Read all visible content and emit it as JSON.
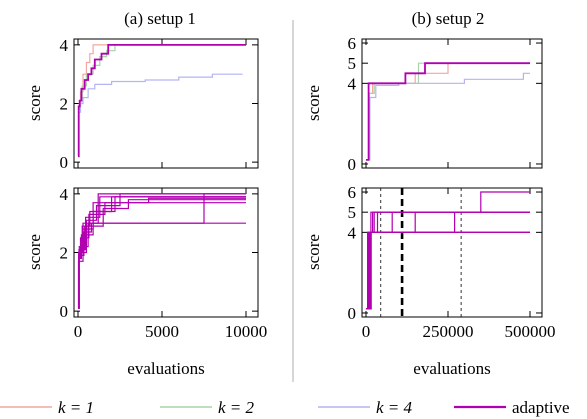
{
  "chart_data": [
    {
      "type": "line",
      "title": "(a) setup 1",
      "xlabel": "",
      "ylabel": "score",
      "xlim": [
        0,
        10000
      ],
      "ylim": [
        -0.2,
        4.2
      ],
      "yticks": [
        0,
        2,
        4
      ],
      "xticks": [],
      "series": [
        {
          "name": "k = 1",
          "x": [
            0,
            40,
            80,
            150,
            300,
            500,
            700,
            900,
            10000
          ],
          "values": [
            0.2,
            1.8,
            2.0,
            2.4,
            3.0,
            3.4,
            3.7,
            4.0,
            4.0
          ]
        },
        {
          "name": "k = 2",
          "x": [
            0,
            50,
            120,
            250,
            500,
            900,
            1300,
            1700,
            2200,
            10000
          ],
          "values": [
            0.2,
            1.8,
            2.1,
            2.6,
            3.0,
            3.3,
            3.6,
            3.8,
            4.0,
            4.0
          ]
        },
        {
          "name": "k = 4",
          "x": [
            0,
            60,
            150,
            300,
            600,
            1000,
            2000,
            4000,
            6000,
            8000,
            9800
          ],
          "values": [
            0.2,
            1.7,
            2.0,
            2.2,
            2.5,
            2.65,
            2.75,
            2.8,
            2.9,
            3.0,
            3.0
          ]
        },
        {
          "name": "adaptive",
          "x": [
            0,
            40,
            100,
            200,
            400,
            600,
            800,
            1000,
            1400,
            1800,
            10000
          ],
          "values": [
            0.2,
            1.9,
            2.1,
            2.5,
            2.8,
            3.0,
            3.2,
            3.5,
            3.7,
            4.0,
            4.0
          ]
        }
      ]
    },
    {
      "type": "line",
      "title": "(b) setup 2",
      "xlabel": "",
      "ylabel": "score",
      "xlim": [
        0,
        500000
      ],
      "ylim": [
        -0.2,
        6.2
      ],
      "yticks": [
        0,
        4,
        5,
        6
      ],
      "xticks": [],
      "series": [
        {
          "name": "k = 1",
          "x": [
            0,
            8000,
            20000,
            60000,
            150000,
            150000,
            250000,
            500000
          ],
          "values": [
            0.2,
            3.5,
            4.0,
            4.0,
            4.0,
            4.5,
            5.0,
            5.0
          ]
        },
        {
          "name": "k = 2",
          "x": [
            0,
            10000,
            25000,
            100000,
            160000,
            160000,
            500000
          ],
          "values": [
            0.2,
            3.5,
            4.0,
            4.0,
            4.5,
            5.0,
            5.0
          ]
        },
        {
          "name": "k = 4",
          "x": [
            0,
            12000,
            30000,
            100000,
            300000,
            480000,
            500000
          ],
          "values": [
            0.2,
            3.3,
            3.9,
            4.0,
            4.2,
            4.5,
            4.5
          ]
        },
        {
          "name": "adaptive",
          "x": [
            0,
            8000,
            20000,
            120000,
            120000,
            180000,
            180000,
            500000
          ],
          "values": [
            0.2,
            4.0,
            4.0,
            4.0,
            4.5,
            4.5,
            5.0,
            5.0
          ]
        }
      ]
    },
    {
      "type": "line",
      "title": "",
      "xlabel": "evaluations",
      "ylabel": "score",
      "xlim": [
        0,
        10000
      ],
      "ylim": [
        -0.2,
        4.2
      ],
      "yticks": [
        0,
        2,
        4
      ],
      "xticks": [
        0,
        5000,
        10000
      ],
      "series": [
        {
          "x": [
            0,
            50,
            300,
            1200,
            10000
          ],
          "values": [
            0.1,
            2.0,
            3.0,
            4.0,
            4.0
          ]
        },
        {
          "x": [
            0,
            40,
            200,
            900,
            2000,
            10000
          ],
          "values": [
            0.1,
            1.8,
            2.6,
            3.4,
            3.9,
            3.9
          ]
        },
        {
          "x": [
            0,
            60,
            400,
            1500,
            3000,
            10000
          ],
          "values": [
            0.1,
            2.1,
            2.9,
            3.5,
            3.8,
            3.8
          ]
        },
        {
          "x": [
            0,
            30,
            300,
            900,
            10000
          ],
          "values": [
            0.1,
            1.7,
            2.8,
            3.7,
            3.7
          ]
        },
        {
          "x": [
            0,
            50,
            500,
            1100,
            2500,
            10000
          ],
          "values": [
            0.1,
            2.0,
            3.1,
            3.6,
            4.0,
            4.0
          ]
        },
        {
          "x": [
            0,
            80,
            600,
            1000,
            10000
          ],
          "values": [
            0.1,
            2.2,
            3.0,
            3.0,
            3.0
          ]
        },
        {
          "x": [
            0,
            40,
            350,
            800,
            1800,
            7500,
            10000
          ],
          "values": [
            0.1,
            1.9,
            2.7,
            3.0,
            3.0,
            4.0,
            4.0
          ]
        },
        {
          "x": [
            0,
            45,
            250,
            700,
            2200,
            10000
          ],
          "values": [
            0.1,
            2.0,
            2.9,
            3.4,
            3.9,
            3.9
          ]
        },
        {
          "x": [
            0,
            70,
            450,
            1300,
            10000
          ],
          "values": [
            0.1,
            2.1,
            3.2,
            3.9,
            3.9
          ]
        },
        {
          "x": [
            0,
            35,
            150,
            650,
            1600,
            4200,
            10000
          ],
          "values": [
            0.1,
            1.8,
            2.5,
            3.3,
            3.7,
            3.85,
            3.85
          ]
        }
      ]
    },
    {
      "type": "line",
      "title": "",
      "xlabel": "evaluations",
      "ylabel": "score",
      "xlim": [
        0,
        500000
      ],
      "ylim": [
        -0.2,
        6.2
      ],
      "yticks": [
        0,
        4,
        5,
        6
      ],
      "xticks": [
        0,
        250000,
        500000
      ],
      "vlines": [
        {
          "x": 45000,
          "style": "dashed-thin"
        },
        {
          "x": 110000,
          "style": "dashed-thick"
        },
        {
          "x": 290000,
          "style": "dashed-thin"
        }
      ],
      "series": [
        {
          "x": [
            0,
            5000,
            500000
          ],
          "values": [
            0.2,
            4.0,
            4.0
          ]
        },
        {
          "x": [
            0,
            6000,
            15000,
            500000
          ],
          "values": [
            0.2,
            4.0,
            5.0,
            5.0
          ]
        },
        {
          "x": [
            0,
            7000,
            20000,
            350000,
            500000
          ],
          "values": [
            0.2,
            4.0,
            5.0,
            6.0,
            6.0
          ]
        },
        {
          "x": [
            0,
            8000,
            25000,
            500000
          ],
          "values": [
            0.2,
            4.0,
            5.0,
            5.0
          ]
        },
        {
          "x": [
            0,
            9000,
            30000,
            500000
          ],
          "values": [
            0.2,
            4.0,
            4.0,
            4.0
          ]
        },
        {
          "x": [
            0,
            10000,
            35000,
            500000
          ],
          "values": [
            0.2,
            4.0,
            5.0,
            5.0
          ]
        },
        {
          "x": [
            0,
            11000,
            60000,
            500000
          ],
          "values": [
            0.2,
            4.0,
            4.0,
            4.0
          ]
        },
        {
          "x": [
            0,
            12000,
            80000,
            500000
          ],
          "values": [
            0.2,
            4.0,
            5.0,
            5.0
          ]
        },
        {
          "x": [
            0,
            14000,
            150000,
            500000
          ],
          "values": [
            0.2,
            4.0,
            5.0,
            5.0
          ]
        },
        {
          "x": [
            0,
            16000,
            270000,
            500000
          ],
          "values": [
            0.2,
            4.0,
            5.0,
            5.0
          ]
        }
      ]
    }
  ],
  "legend": [
    {
      "label": "k = 1",
      "color": "#f4a6a0"
    },
    {
      "label": "k = 2",
      "color": "#a8d4a8"
    },
    {
      "label": "k = 4",
      "color": "#b4b4f4"
    },
    {
      "label": "adaptive",
      "color": "#b000b0"
    }
  ],
  "colors": {
    "k1": "#f4a6a0",
    "k2": "#a8d4a8",
    "k4": "#b4b4f4",
    "adaptive": "#b000b0",
    "axis": "#000000",
    "divider": "#999999"
  }
}
